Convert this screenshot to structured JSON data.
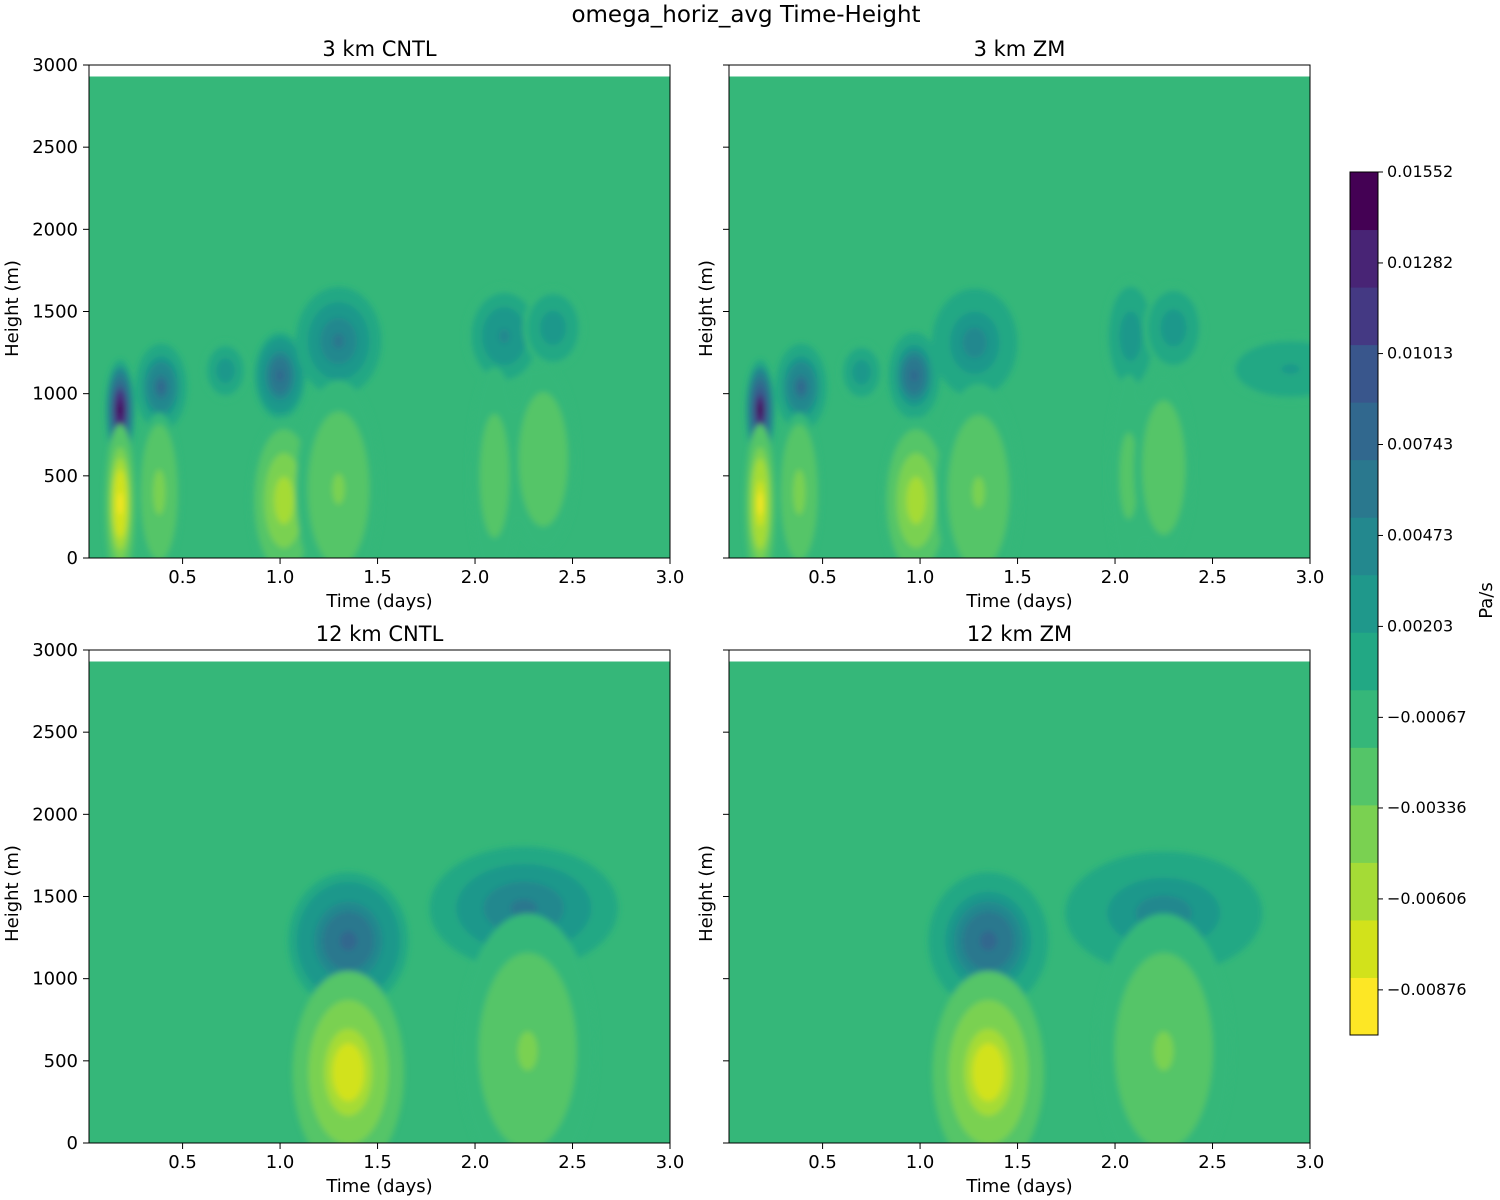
{
  "figure": {
    "title": "omega_horiz_avg Time-Height"
  },
  "chart_data": {
    "type": "heatmap",
    "variable": "omega_horiz_avg",
    "units": "Pa/s",
    "xlabel": "Time (days)",
    "ylabel": "Height (m)",
    "xlim": [
      0.02,
      3.0
    ],
    "ylim": [
      0,
      3000
    ],
    "xticks": [
      "0.5",
      "1.0",
      "1.5",
      "2.0",
      "2.5",
      "3.0"
    ],
    "xtick_values": [
      0.5,
      1.0,
      1.5,
      2.0,
      2.5,
      3.0
    ],
    "yticks": [
      "0",
      "500",
      "1000",
      "1500",
      "2000",
      "2500",
      "3000"
    ],
    "ytick_values": [
      0,
      500,
      1000,
      1500,
      2000,
      2500,
      3000
    ],
    "data_top": 2930,
    "background_value": -0.00067,
    "colorbar": {
      "label": "Pa/s",
      "min": -0.0101,
      "max": 0.01552,
      "tick_labels": [
        "0.01552",
        "0.01282",
        "0.01013",
        "0.00743",
        "0.00473",
        "0.00203",
        "−0.00067",
        "−0.00336",
        "−0.00606",
        "−0.00876"
      ],
      "tick_values": [
        0.01552,
        0.01282,
        0.01013,
        0.00743,
        0.00473,
        0.00203,
        -0.00067,
        -0.00336,
        -0.00606,
        -0.00876
      ],
      "colors": [
        "#fde725",
        "#d2e21b",
        "#a5db36",
        "#7ad151",
        "#54c568",
        "#35b779",
        "#22a884",
        "#1f988b",
        "#23888e",
        "#2a788e",
        "#31688e",
        "#39568c",
        "#443983",
        "#482475",
        "#440154"
      ]
    },
    "panels": [
      {
        "title": "3 km CNTL",
        "show_ylabels": true,
        "features": [
          {
            "t": 0.18,
            "z": 900,
            "st": 0.035,
            "sz": 140,
            "a": 0.0155
          },
          {
            "t": 0.18,
            "z": 330,
            "st": 0.035,
            "sz": 220,
            "a": -0.0092
          },
          {
            "t": 0.39,
            "z": 1040,
            "st": 0.06,
            "sz": 120,
            "a": 0.0075
          },
          {
            "t": 0.72,
            "z": 1140,
            "st": 0.05,
            "sz": 80,
            "a": 0.0035
          },
          {
            "t": 1.0,
            "z": 1110,
            "st": 0.06,
            "sz": 120,
            "a": 0.0082
          },
          {
            "t": 1.3,
            "z": 1320,
            "st": 0.1,
            "sz": 150,
            "a": 0.0055
          },
          {
            "t": 2.15,
            "z": 1350,
            "st": 0.09,
            "sz": 140,
            "a": 0.004
          },
          {
            "t": 2.4,
            "z": 1400,
            "st": 0.07,
            "sz": 110,
            "a": 0.003
          },
          {
            "t": 0.38,
            "z": 400,
            "st": 0.05,
            "sz": 220,
            "a": -0.004
          },
          {
            "t": 1.02,
            "z": 350,
            "st": 0.08,
            "sz": 230,
            "a": -0.006
          },
          {
            "t": 1.3,
            "z": 420,
            "st": 0.1,
            "sz": 300,
            "a": -0.0035
          },
          {
            "t": 2.1,
            "z": 500,
            "st": 0.06,
            "sz": 300,
            "a": -0.0025
          },
          {
            "t": 2.35,
            "z": 600,
            "st": 0.08,
            "sz": 260,
            "a": -0.0032
          }
        ]
      },
      {
        "title": "3 km ZM",
        "show_ylabels": false,
        "features": [
          {
            "t": 0.18,
            "z": 900,
            "st": 0.035,
            "sz": 140,
            "a": 0.0145
          },
          {
            "t": 0.18,
            "z": 330,
            "st": 0.035,
            "sz": 220,
            "a": -0.0088
          },
          {
            "t": 0.39,
            "z": 1040,
            "st": 0.06,
            "sz": 120,
            "a": 0.0072
          },
          {
            "t": 0.7,
            "z": 1130,
            "st": 0.05,
            "sz": 80,
            "a": 0.0035
          },
          {
            "t": 0.97,
            "z": 1110,
            "st": 0.06,
            "sz": 120,
            "a": 0.0078
          },
          {
            "t": 1.28,
            "z": 1310,
            "st": 0.1,
            "sz": 150,
            "a": 0.0052
          },
          {
            "t": 2.08,
            "z": 1350,
            "st": 0.06,
            "sz": 160,
            "a": 0.0035
          },
          {
            "t": 2.3,
            "z": 1400,
            "st": 0.07,
            "sz": 120,
            "a": 0.0032
          },
          {
            "t": 2.9,
            "z": 1150,
            "st": 0.15,
            "sz": 90,
            "a": 0.0022
          },
          {
            "t": 0.38,
            "z": 400,
            "st": 0.05,
            "sz": 220,
            "a": -0.0038
          },
          {
            "t": 0.98,
            "z": 350,
            "st": 0.08,
            "sz": 230,
            "a": -0.0058
          },
          {
            "t": 1.3,
            "z": 400,
            "st": 0.1,
            "sz": 300,
            "a": -0.0033
          },
          {
            "t": 2.07,
            "z": 500,
            "st": 0.05,
            "sz": 280,
            "a": -0.0022
          },
          {
            "t": 2.25,
            "z": 550,
            "st": 0.07,
            "sz": 260,
            "a": -0.003
          }
        ]
      },
      {
        "title": "12 km CNTL",
        "show_ylabels": true,
        "features": [
          {
            "t": 1.35,
            "z": 1230,
            "st": 0.14,
            "sz": 190,
            "a": 0.0082
          },
          {
            "t": 2.25,
            "z": 1430,
            "st": 0.22,
            "sz": 170,
            "a": 0.0055
          },
          {
            "t": 1.35,
            "z": 430,
            "st": 0.13,
            "sz": 280,
            "a": -0.008
          },
          {
            "t": 2.27,
            "z": 560,
            "st": 0.16,
            "sz": 380,
            "a": -0.0036
          }
        ]
      },
      {
        "title": "12 km ZM",
        "show_ylabels": false,
        "features": [
          {
            "t": 1.35,
            "z": 1230,
            "st": 0.14,
            "sz": 190,
            "a": 0.008
          },
          {
            "t": 2.25,
            "z": 1400,
            "st": 0.23,
            "sz": 170,
            "a": 0.0052
          },
          {
            "t": 1.35,
            "z": 430,
            "st": 0.13,
            "sz": 280,
            "a": -0.0078
          },
          {
            "t": 2.25,
            "z": 560,
            "st": 0.16,
            "sz": 380,
            "a": -0.0034
          }
        ]
      }
    ]
  }
}
